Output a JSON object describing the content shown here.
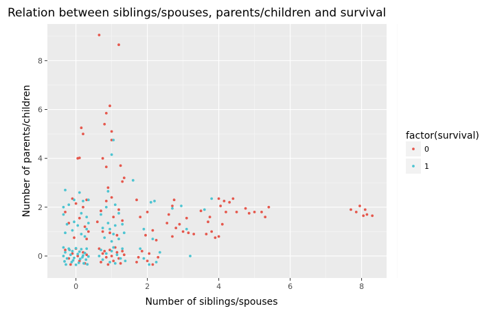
{
  "chart_data": {
    "type": "scatter",
    "title": "Relation between siblings/spouses, parents/children and survival",
    "xlabel": "Number of siblings/spouses",
    "ylabel": "Number of parents/children",
    "xlim": [
      -0.8,
      8.7
    ],
    "ylim": [
      -0.9,
      9.5
    ],
    "x_ticks": [
      0,
      2,
      4,
      6,
      8
    ],
    "y_ticks": [
      0,
      2,
      4,
      6,
      8
    ],
    "grid": true,
    "legend": {
      "title": "factor(survival)",
      "placement": "right"
    },
    "series": [
      {
        "name": "0",
        "color": "#e5574c",
        "points": [
          [
            0.65,
            9.05
          ],
          [
            1.2,
            8.65
          ],
          [
            0.95,
            6.15
          ],
          [
            0.85,
            5.85
          ],
          [
            0.8,
            5.4
          ],
          [
            1.0,
            5.1
          ],
          [
            0.15,
            5.25
          ],
          [
            0.2,
            5.0
          ],
          [
            0.05,
            4.0
          ],
          [
            0.1,
            4.02
          ],
          [
            0.75,
            4.0
          ],
          [
            1.0,
            4.75
          ],
          [
            1.25,
            3.7
          ],
          [
            1.35,
            3.2
          ],
          [
            0.85,
            3.65
          ],
          [
            0.9,
            2.8
          ],
          [
            1.3,
            3.05
          ],
          [
            0.3,
            2.3
          ],
          [
            -0.1,
            2.35
          ],
          [
            0.0,
            2.15
          ],
          [
            0.2,
            2.0
          ],
          [
            -0.3,
            1.8
          ],
          [
            0.1,
            1.55
          ],
          [
            -0.2,
            1.35
          ],
          [
            0.25,
            1.2
          ],
          [
            0.35,
            1.0
          ],
          [
            -0.05,
            0.75
          ],
          [
            0.3,
            0.7
          ],
          [
            0.6,
            1.4
          ],
          [
            0.75,
            1.0
          ],
          [
            0.95,
            0.95
          ],
          [
            1.05,
            1.6
          ],
          [
            1.2,
            1.9
          ],
          [
            0.85,
            2.25
          ],
          [
            0.7,
            1.85
          ],
          [
            1.0,
            2.4
          ],
          [
            1.3,
            1.45
          ],
          [
            1.15,
            0.85
          ],
          [
            1.7,
            2.3
          ],
          [
            1.8,
            1.6
          ],
          [
            2.0,
            1.8
          ],
          [
            2.15,
            1.05
          ],
          [
            1.95,
            0.85
          ],
          [
            2.25,
            0.65
          ],
          [
            1.85,
            0.2
          ],
          [
            2.05,
            0.1
          ],
          [
            1.75,
            -0.05
          ],
          [
            2.3,
            -0.05
          ],
          [
            2.0,
            -0.2
          ],
          [
            1.7,
            -0.25
          ],
          [
            2.15,
            -0.35
          ],
          [
            2.7,
            2.05
          ],
          [
            2.75,
            2.3
          ],
          [
            2.6,
            1.7
          ],
          [
            2.8,
            1.15
          ],
          [
            2.55,
            1.35
          ],
          [
            2.9,
            1.3
          ],
          [
            2.7,
            0.8
          ],
          [
            3.0,
            1.0
          ],
          [
            3.15,
            0.95
          ],
          [
            3.3,
            0.9
          ],
          [
            3.1,
            1.55
          ],
          [
            3.5,
            1.85
          ],
          [
            3.75,
            1.6
          ],
          [
            3.7,
            1.4
          ],
          [
            3.8,
            1.0
          ],
          [
            3.9,
            0.75
          ],
          [
            4.0,
            0.8
          ],
          [
            3.65,
            0.9
          ],
          [
            4.1,
            1.3
          ],
          [
            4.0,
            2.35
          ],
          [
            4.15,
            2.25
          ],
          [
            4.3,
            2.2
          ],
          [
            4.4,
            2.35
          ],
          [
            4.05,
            2.05
          ],
          [
            4.2,
            1.8
          ],
          [
            4.5,
            1.8
          ],
          [
            4.75,
            1.95
          ],
          [
            4.85,
            1.75
          ],
          [
            5.0,
            1.8
          ],
          [
            5.2,
            1.8
          ],
          [
            5.3,
            1.6
          ],
          [
            5.4,
            2.0
          ],
          [
            7.7,
            1.9
          ],
          [
            7.85,
            1.8
          ],
          [
            7.95,
            2.05
          ],
          [
            8.05,
            1.65
          ],
          [
            8.1,
            1.9
          ],
          [
            8.15,
            1.7
          ],
          [
            8.3,
            1.65
          ],
          [
            0.65,
            0.3
          ],
          [
            0.75,
            0.1
          ],
          [
            0.85,
            -0.05
          ],
          [
            0.95,
            0.25
          ],
          [
            1.05,
            -0.2
          ],
          [
            1.15,
            0.15
          ],
          [
            1.25,
            -0.3
          ],
          [
            1.35,
            0.05
          ],
          [
            0.7,
            -0.25
          ],
          [
            0.9,
            -0.35
          ],
          [
            1.1,
            0.35
          ],
          [
            1.3,
            0.2
          ],
          [
            0.8,
            0.2
          ],
          [
            1.2,
            -0.1
          ],
          [
            1.0,
            0.0
          ],
          [
            0.0,
            0.3
          ],
          [
            -0.1,
            0.1
          ],
          [
            -0.2,
            -0.1
          ],
          [
            0.1,
            -0.2
          ],
          [
            0.2,
            0.15
          ],
          [
            -0.3,
            0.25
          ],
          [
            0.25,
            -0.3
          ],
          [
            -0.15,
            -0.35
          ],
          [
            0.3,
            0.05
          ],
          [
            0.05,
            0.0
          ]
        ]
      },
      {
        "name": "1",
        "color": "#4dc4d1",
        "points": [
          [
            1.05,
            4.75
          ],
          [
            1.0,
            4.15
          ],
          [
            1.6,
            3.1
          ],
          [
            0.9,
            2.65
          ],
          [
            -0.3,
            2.7
          ],
          [
            0.1,
            2.6
          ],
          [
            -0.05,
            2.3
          ],
          [
            0.2,
            2.25
          ],
          [
            0.35,
            2.3
          ],
          [
            -0.35,
            2.0
          ],
          [
            -0.2,
            2.1
          ],
          [
            0.15,
            1.75
          ],
          [
            -0.35,
            1.7
          ],
          [
            0.3,
            1.6
          ],
          [
            -0.25,
            1.3
          ],
          [
            0.05,
            1.25
          ],
          [
            0.35,
            1.35
          ],
          [
            -0.1,
            1.05
          ],
          [
            0.15,
            0.9
          ],
          [
            -0.3,
            0.95
          ],
          [
            0.25,
            0.8
          ],
          [
            0.3,
            1.1
          ],
          [
            -0.05,
            1.4
          ],
          [
            0.7,
            1.7
          ],
          [
            0.85,
            2.0
          ],
          [
            1.1,
            2.1
          ],
          [
            1.2,
            1.75
          ],
          [
            0.9,
            1.35
          ],
          [
            1.1,
            1.25
          ],
          [
            1.3,
            1.3
          ],
          [
            0.75,
            1.15
          ],
          [
            0.95,
            1.1
          ],
          [
            1.05,
            0.9
          ],
          [
            1.2,
            0.7
          ],
          [
            0.8,
            0.75
          ],
          [
            1.35,
            0.95
          ],
          [
            1.0,
            0.6
          ],
          [
            1.9,
            1.1
          ],
          [
            2.1,
            2.2
          ],
          [
            2.2,
            2.25
          ],
          [
            2.15,
            0.7
          ],
          [
            1.8,
            0.3
          ],
          [
            2.35,
            0.15
          ],
          [
            1.9,
            -0.1
          ],
          [
            2.25,
            -0.25
          ],
          [
            2.05,
            -0.35
          ],
          [
            2.7,
            1.95
          ],
          [
            2.95,
            2.05
          ],
          [
            3.1,
            1.1
          ],
          [
            3.2,
            0.0
          ],
          [
            3.8,
            2.35
          ],
          [
            3.6,
            1.9
          ],
          [
            -0.35,
            0.35
          ],
          [
            -0.2,
            0.3
          ],
          [
            0.0,
            0.32
          ],
          [
            0.15,
            0.28
          ],
          [
            0.3,
            0.3
          ],
          [
            -0.3,
            0.15
          ],
          [
            -0.1,
            0.2
          ],
          [
            0.1,
            0.18
          ],
          [
            0.25,
            0.12
          ],
          [
            -0.35,
            0.0
          ],
          [
            -0.15,
            0.05
          ],
          [
            0.05,
            0.08
          ],
          [
            0.2,
            0.02
          ],
          [
            0.35,
            -0.02
          ],
          [
            -0.25,
            -0.1
          ],
          [
            -0.05,
            -0.08
          ],
          [
            0.12,
            -0.12
          ],
          [
            0.28,
            -0.15
          ],
          [
            -0.32,
            -0.22
          ],
          [
            -0.12,
            -0.25
          ],
          [
            0.08,
            -0.28
          ],
          [
            0.22,
            -0.3
          ],
          [
            -0.28,
            -0.35
          ],
          [
            0.0,
            -0.36
          ],
          [
            0.32,
            -0.34
          ],
          [
            -0.18,
            0.25
          ],
          [
            0.18,
            -0.05
          ],
          [
            -0.08,
            -0.18
          ],
          [
            0.7,
            0.25
          ],
          [
            0.85,
            0.1
          ],
          [
            1.0,
            0.2
          ],
          [
            1.15,
            0.05
          ],
          [
            1.3,
            0.3
          ],
          [
            0.75,
            -0.15
          ],
          [
            0.95,
            -0.25
          ],
          [
            1.1,
            -0.3
          ],
          [
            1.25,
            -0.1
          ],
          [
            1.38,
            -0.2
          ],
          [
            0.65,
            0.0
          ],
          [
            1.05,
            0.35
          ]
        ]
      }
    ]
  }
}
